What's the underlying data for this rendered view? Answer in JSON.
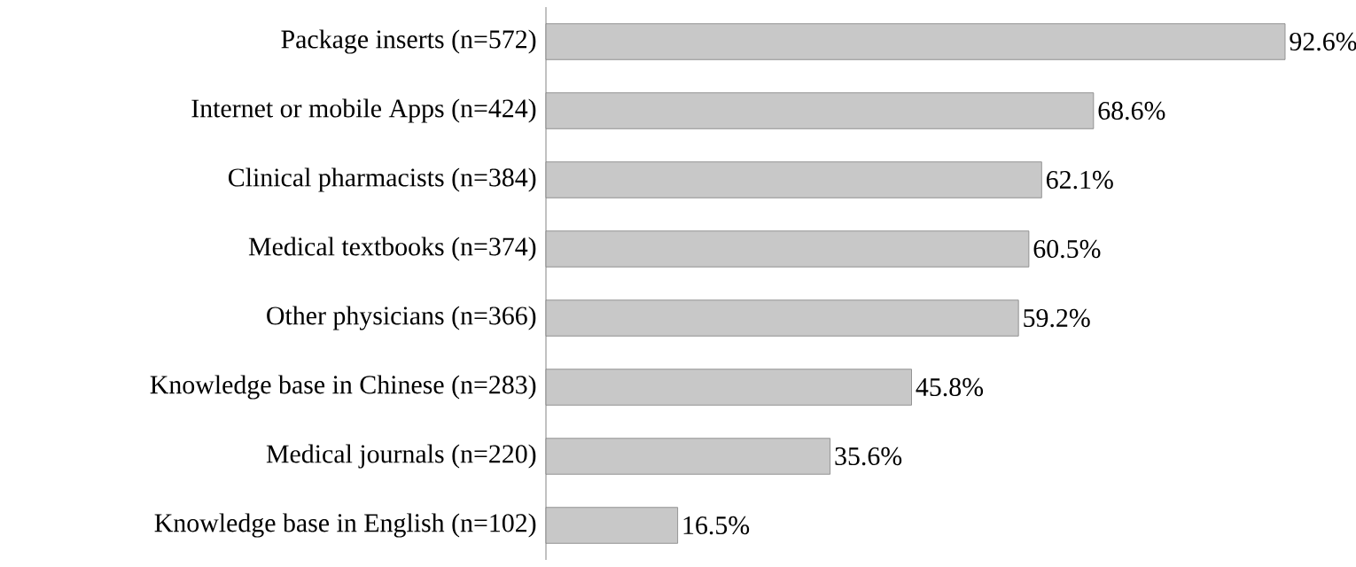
{
  "chart_data": {
    "type": "bar",
    "orientation": "horizontal",
    "categories": [
      "Package inserts (n=572)",
      "Internet or mobile Apps (n=424)",
      "Clinical pharmacists (n=384)",
      "Medical textbooks (n=374)",
      "Other physicians (n=366)",
      "Knowledge base in Chinese (n=283)",
      "Medical journals (n=220)",
      "Knowledge base in English (n=102)"
    ],
    "values": [
      92.6,
      68.6,
      62.1,
      60.5,
      59.2,
      45.8,
      35.6,
      16.5
    ],
    "value_labels": [
      "92.6%",
      "68.6%",
      "62.1%",
      "60.5%",
      "59.2%",
      "45.8%",
      "35.6%",
      "16.5%"
    ],
    "color": "#c8c8c8"
  }
}
